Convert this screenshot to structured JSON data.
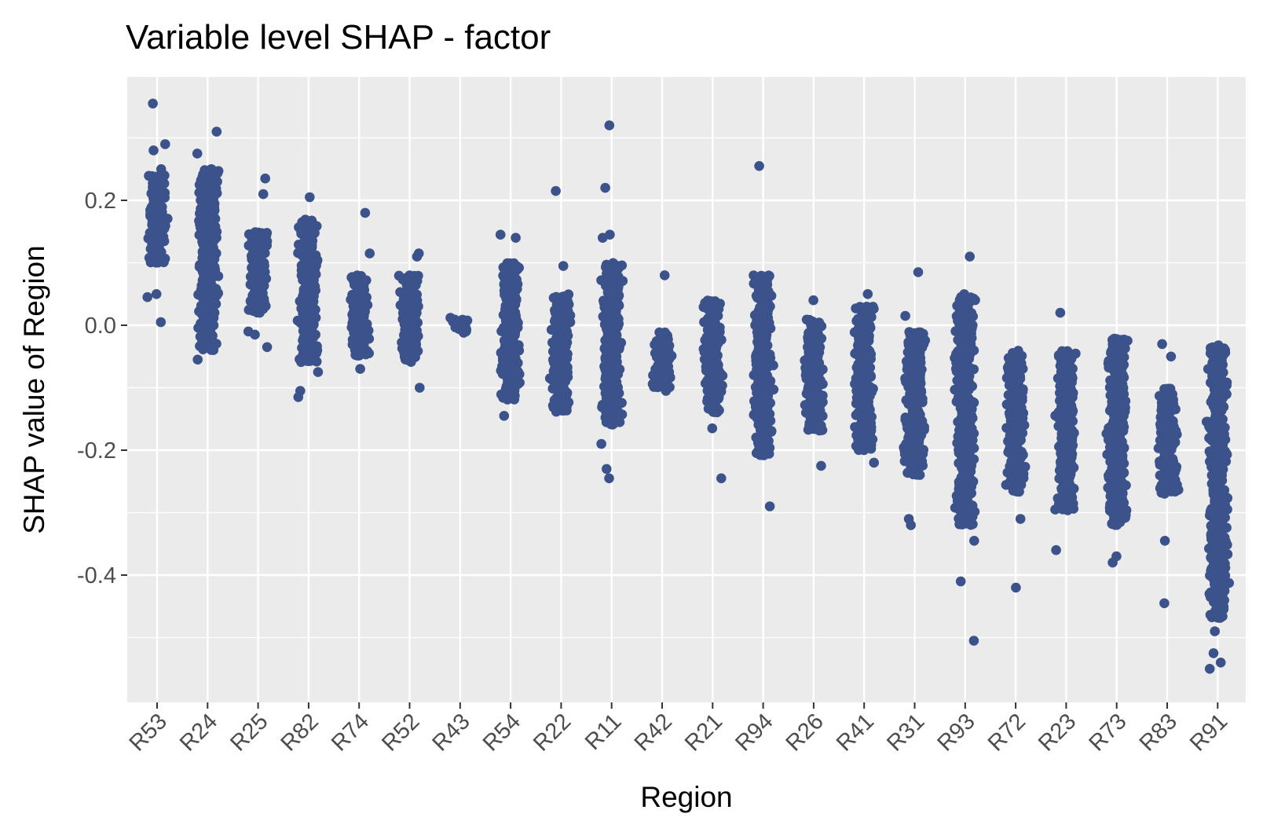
{
  "chart_data": {
    "type": "scatter",
    "title": "Variable level SHAP - factor",
    "xlabel": "Region",
    "ylabel": "SHAP value of Region",
    "y_ticks": [
      0.2,
      0.0,
      -0.2,
      -0.4
    ],
    "y_tick_labels": [
      "0.2",
      "0.0",
      "-0.2",
      "-0.4"
    ],
    "ylim": [
      -0.6,
      0.41
    ],
    "grid": true,
    "legend": "none",
    "colors": {
      "panel": "#ebebeb",
      "grid": "#ffffff",
      "point": "#3b528b"
    },
    "categories": [
      "R53",
      "R24",
      "R25",
      "R82",
      "R74",
      "R52",
      "R43",
      "R54",
      "R22",
      "R11",
      "R42",
      "R21",
      "R94",
      "R26",
      "R41",
      "R31",
      "R93",
      "R72",
      "R23",
      "R73",
      "R83",
      "R91"
    ],
    "series": [
      {
        "category": "R53",
        "core": [
          0.1,
          0.24
        ],
        "outliers": [
          0.355,
          0.29,
          0.28,
          0.25,
          0.045,
          0.005,
          0.05
        ]
      },
      {
        "category": "R24",
        "core": [
          -0.04,
          0.25
        ],
        "outliers": [
          0.31,
          0.275,
          -0.055
        ]
      },
      {
        "category": "R25",
        "core": [
          0.02,
          0.15
        ],
        "outliers": [
          0.235,
          0.21,
          -0.035,
          -0.01,
          -0.015
        ]
      },
      {
        "category": "R82",
        "core": [
          -0.06,
          0.17
        ],
        "outliers": [
          0.205,
          -0.105,
          -0.115,
          -0.075
        ]
      },
      {
        "category": "R74",
        "core": [
          -0.05,
          0.08
        ],
        "outliers": [
          0.18,
          0.115,
          -0.07
        ]
      },
      {
        "category": "R52",
        "core": [
          -0.06,
          0.08
        ],
        "outliers": [
          0.115,
          0.11,
          -0.1
        ]
      },
      {
        "category": "R43",
        "core": [
          -0.01,
          0.01
        ],
        "outliers": [
          0.012,
          -0.01,
          -0.012
        ]
      },
      {
        "category": "R54",
        "core": [
          -0.12,
          0.1
        ],
        "outliers": [
          0.145,
          0.14,
          -0.145
        ]
      },
      {
        "category": "R22",
        "core": [
          -0.14,
          0.05
        ],
        "outliers": [
          0.215,
          0.095
        ]
      },
      {
        "category": "R11",
        "core": [
          -0.16,
          0.1
        ],
        "outliers": [
          0.32,
          0.22,
          0.145,
          0.14,
          -0.19,
          -0.23,
          -0.245
        ]
      },
      {
        "category": "R42",
        "core": [
          -0.1,
          -0.01
        ],
        "outliers": [
          0.08,
          -0.105
        ]
      },
      {
        "category": "R21",
        "core": [
          -0.14,
          0.04
        ],
        "outliers": [
          -0.165,
          -0.245
        ]
      },
      {
        "category": "R94",
        "core": [
          -0.21,
          0.08
        ],
        "outliers": [
          0.255,
          -0.29
        ]
      },
      {
        "category": "R26",
        "core": [
          -0.17,
          0.01
        ],
        "outliers": [
          0.04,
          -0.225
        ]
      },
      {
        "category": "R41",
        "core": [
          -0.2,
          0.03
        ],
        "outliers": [
          0.05,
          -0.22
        ]
      },
      {
        "category": "R31",
        "core": [
          -0.24,
          -0.01
        ],
        "outliers": [
          0.085,
          0.015,
          -0.31,
          -0.32
        ]
      },
      {
        "category": "R93",
        "core": [
          -0.32,
          0.05
        ],
        "outliers": [
          0.11,
          -0.345,
          -0.41,
          -0.505
        ]
      },
      {
        "category": "R72",
        "core": [
          -0.27,
          -0.04
        ],
        "outliers": [
          -0.31,
          -0.42
        ]
      },
      {
        "category": "R23",
        "core": [
          -0.3,
          -0.04
        ],
        "outliers": [
          0.02,
          -0.36
        ]
      },
      {
        "category": "R73",
        "core": [
          -0.32,
          -0.02
        ],
        "outliers": [
          -0.37,
          -0.38
        ]
      },
      {
        "category": "R83",
        "core": [
          -0.27,
          -0.1
        ],
        "outliers": [
          -0.03,
          -0.05,
          -0.345,
          -0.445
        ]
      },
      {
        "category": "R91",
        "core": [
          -0.47,
          -0.03
        ],
        "outliers": [
          -0.49,
          -0.525,
          -0.54,
          -0.55
        ]
      }
    ]
  }
}
